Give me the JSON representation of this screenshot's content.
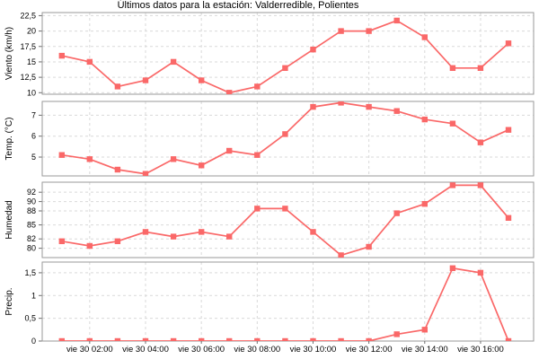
{
  "title": "Últimos datos para la estación: Valderredible, Polientes",
  "colors": {
    "series": "#fa6868",
    "grid": "#d9d9d9",
    "border": "#9a9a9a",
    "text": "#000000",
    "background": "#ffffff"
  },
  "x_axis": {
    "hours": [
      1,
      2,
      3,
      4,
      5,
      6,
      7,
      8,
      9,
      10,
      11,
      12,
      13,
      14,
      15,
      16,
      17
    ],
    "xlim": [
      0.3,
      17.9
    ],
    "tick_hours": [
      2,
      4,
      6,
      8,
      10,
      12,
      14,
      16
    ],
    "tick_labels": [
      "vie 30 02:00",
      "vie 30 04:00",
      "vie 30 06:00",
      "vie 30 08:00",
      "vie 30 10:00",
      "vie 30 12:00",
      "vie 30 14:00",
      "vie 30 16:00"
    ]
  },
  "chart_data": [
    {
      "type": "line",
      "name": "viento",
      "ylabel": "Viento (km/h)",
      "ylim": [
        9.75,
        23.0
      ],
      "yticks": [
        {
          "v": 10,
          "label": "10"
        },
        {
          "v": 12.5,
          "label": "12,5"
        },
        {
          "v": 15,
          "label": "15"
        },
        {
          "v": 17.5,
          "label": "17,5"
        },
        {
          "v": 20,
          "label": "20"
        },
        {
          "v": 22.5,
          "label": "22,5"
        }
      ],
      "x": [
        1,
        2,
        3,
        4,
        5,
        6,
        7,
        8,
        9,
        10,
        11,
        12,
        13,
        14,
        15,
        16,
        17
      ],
      "values": [
        16,
        15,
        11,
        12,
        15,
        12,
        10,
        11,
        14,
        17,
        20,
        20,
        21.7,
        19,
        14,
        14,
        18
      ]
    },
    {
      "type": "line",
      "name": "temp",
      "ylabel": "Temp. (°C)",
      "ylim": [
        4.1,
        7.66
      ],
      "yticks": [
        {
          "v": 5,
          "label": "5"
        },
        {
          "v": 6,
          "label": "6"
        },
        {
          "v": 7,
          "label": "7"
        }
      ],
      "x": [
        1,
        2,
        3,
        4,
        5,
        6,
        7,
        8,
        9,
        10,
        11,
        12,
        13,
        14,
        15,
        16,
        17
      ],
      "values": [
        5.1,
        4.9,
        4.4,
        4.2,
        4.9,
        4.6,
        5.3,
        5.1,
        6.1,
        7.4,
        7.6,
        7.4,
        7.2,
        6.8,
        6.6,
        5.7,
        6.3
      ]
    },
    {
      "type": "line",
      "name": "humedad",
      "ylabel": "Humedad",
      "ylim": [
        78.0,
        94.15
      ],
      "yticks": [
        {
          "v": 80,
          "label": "80"
        },
        {
          "v": 82,
          "label": "82"
        },
        {
          "v": 85,
          "label": "85"
        },
        {
          "v": 88,
          "label": "88"
        },
        {
          "v": 90,
          "label": "90"
        },
        {
          "v": 92,
          "label": "92"
        }
      ],
      "x": [
        1,
        2,
        3,
        4,
        5,
        6,
        7,
        8,
        9,
        10,
        11,
        12,
        13,
        14,
        15,
        16,
        17
      ],
      "values": [
        81.5,
        80.5,
        81.5,
        83.5,
        82.5,
        83.5,
        82.5,
        88.5,
        88.5,
        83.5,
        78.5,
        80.3,
        87.5,
        89.5,
        93.5,
        93.5,
        86.5
      ]
    },
    {
      "type": "line",
      "name": "precip",
      "ylabel": "Precip.",
      "ylim": [
        0,
        1.735
      ],
      "yticks": [
        {
          "v": 0,
          "label": "0"
        },
        {
          "v": 0.5,
          "label": "0,5"
        },
        {
          "v": 1,
          "label": "1"
        },
        {
          "v": 1.5,
          "label": "1,5"
        }
      ],
      "x": [
        1,
        2,
        3,
        4,
        5,
        6,
        7,
        8,
        9,
        10,
        11,
        12,
        13,
        14,
        15,
        16,
        17
      ],
      "values": [
        0,
        0,
        0,
        0,
        0,
        0,
        0,
        0,
        0,
        0,
        0,
        0,
        0.15,
        0.25,
        1.6,
        1.5,
        0
      ]
    }
  ]
}
